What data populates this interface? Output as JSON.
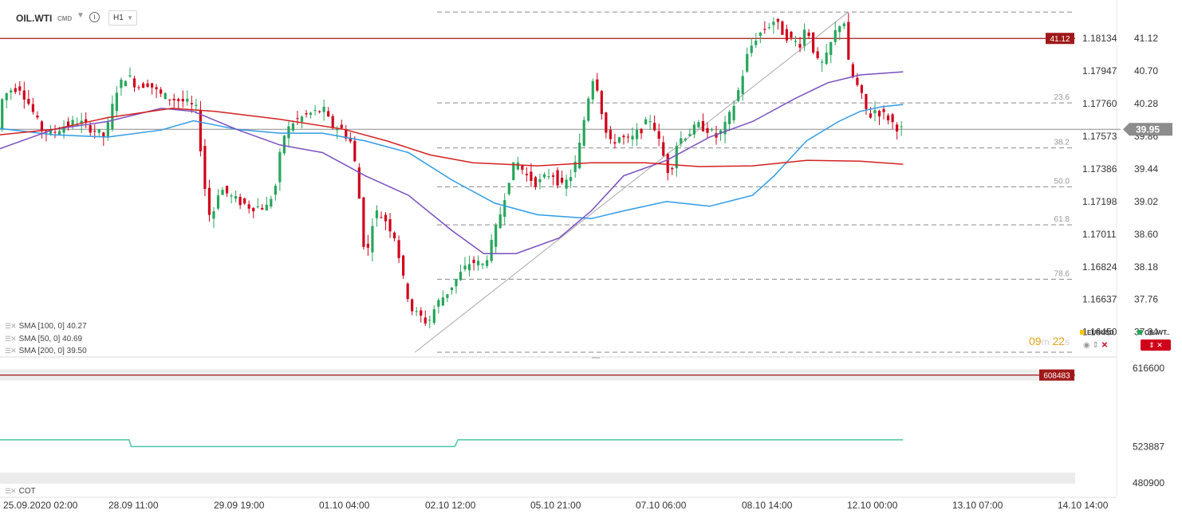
{
  "header": {
    "symbol": "OIL.WTI",
    "market": "CMD",
    "timeframe": "H1"
  },
  "indicators": [
    {
      "label": "SMA [100,  0] 40.27"
    },
    {
      "label": "SMA [50,  0] 40.69"
    },
    {
      "label": "SMA [200,  0] 39.50"
    }
  ],
  "cot_label": "COT",
  "timer": {
    "minutes": "09",
    "m": "m",
    "seconds": "22",
    "s": "s"
  },
  "pairs": [
    {
      "label": "EURUSD",
      "color": "#f5c518"
    },
    {
      "label": "OIL.WT..",
      "color": "#26a65b"
    }
  ],
  "colors": {
    "bull": "#26a65b",
    "bear": "#d0021b",
    "sma100": "#2f9be6",
    "sma50": "#7a4fbf",
    "sma200": "#d42020",
    "cot": "#4ec3a8",
    "hline": "#a01818",
    "current": "#8c8c8c"
  },
  "chart_data": {
    "type": "candlestick",
    "symbol": "OIL.WTI",
    "timeframe": "H1",
    "ylim": [
      37.08,
      41.43
    ],
    "right_axis": [
      41.12,
      40.7,
      40.28,
      39.86,
      39.44,
      39.02,
      38.6,
      38.18,
      37.76,
      37.34
    ],
    "left_axis": [
      "1.18134",
      "1.17947",
      "1.17760",
      "1.17573",
      "1.17386",
      "1.17198",
      "1.17011",
      "1.16824",
      "1.16637",
      "1.16450"
    ],
    "x_ticks": [
      "25.09.2020  02:00",
      "28.09  11:00",
      "29.09  19:00",
      "01.10  04:00",
      "02.10  12:00",
      "05.10  21:00",
      "07.10  06:00",
      "08.10  14:00",
      "12.10  00:00",
      "13.10  07:00",
      "14.10  14:00"
    ],
    "current_price": 39.95,
    "current_price_label": "39.95",
    "horizontal_line": {
      "value": 41.12,
      "label": "41.12"
    },
    "fibonacci": [
      {
        "label": "23.6",
        "value": 40.29
      },
      {
        "label": "38.2",
        "value": 39.71
      },
      {
        "label": "50.0",
        "value": 39.21
      },
      {
        "label": "61.8",
        "value": 38.72
      },
      {
        "label": "78.6",
        "value": 38.02
      }
    ],
    "fib_top": 41.46,
    "fib_bottom": 37.08,
    "trendline": [
      {
        "x": 0.386,
        "y": 37.08
      },
      {
        "x": 0.789,
        "y": 41.46
      }
    ],
    "series": [
      {
        "name": "SMA [100,  0]",
        "values": [
          [
            0.0,
            39.96
          ],
          [
            0.05,
            39.88
          ],
          [
            0.1,
            39.85
          ],
          [
            0.15,
            39.94
          ],
          [
            0.18,
            40.06
          ],
          [
            0.22,
            39.95
          ],
          [
            0.26,
            39.9
          ],
          [
            0.3,
            39.9
          ],
          [
            0.34,
            39.8
          ],
          [
            0.38,
            39.65
          ],
          [
            0.42,
            39.3
          ],
          [
            0.46,
            39.0
          ],
          [
            0.5,
            38.85
          ],
          [
            0.55,
            38.8
          ],
          [
            0.58,
            38.9
          ],
          [
            0.62,
            39.02
          ],
          [
            0.66,
            38.96
          ],
          [
            0.7,
            39.1
          ],
          [
            0.72,
            39.35
          ],
          [
            0.75,
            39.8
          ],
          [
            0.78,
            40.05
          ],
          [
            0.8,
            40.18
          ],
          [
            0.82,
            40.24
          ],
          [
            0.84,
            40.27
          ]
        ]
      },
      {
        "name": "SMA [50,  0]",
        "values": [
          [
            0.0,
            39.7
          ],
          [
            0.05,
            39.95
          ],
          [
            0.1,
            40.05
          ],
          [
            0.15,
            40.22
          ],
          [
            0.18,
            40.18
          ],
          [
            0.22,
            39.95
          ],
          [
            0.26,
            39.75
          ],
          [
            0.3,
            39.65
          ],
          [
            0.34,
            39.35
          ],
          [
            0.38,
            39.1
          ],
          [
            0.42,
            38.65
          ],
          [
            0.45,
            38.35
          ],
          [
            0.48,
            38.35
          ],
          [
            0.52,
            38.55
          ],
          [
            0.55,
            38.9
          ],
          [
            0.58,
            39.35
          ],
          [
            0.62,
            39.55
          ],
          [
            0.66,
            39.85
          ],
          [
            0.7,
            40.05
          ],
          [
            0.74,
            40.35
          ],
          [
            0.77,
            40.55
          ],
          [
            0.8,
            40.65
          ],
          [
            0.84,
            40.69
          ]
        ]
      },
      {
        "name": "SMA [200,  0]",
        "values": [
          [
            0.0,
            39.88
          ],
          [
            0.05,
            39.95
          ],
          [
            0.1,
            40.1
          ],
          [
            0.16,
            40.22
          ],
          [
            0.2,
            40.18
          ],
          [
            0.26,
            40.08
          ],
          [
            0.32,
            39.95
          ],
          [
            0.36,
            39.8
          ],
          [
            0.4,
            39.62
          ],
          [
            0.44,
            39.52
          ],
          [
            0.5,
            39.48
          ],
          [
            0.55,
            39.52
          ],
          [
            0.6,
            39.52
          ],
          [
            0.65,
            39.47
          ],
          [
            0.7,
            39.48
          ],
          [
            0.75,
            39.55
          ],
          [
            0.8,
            39.54
          ],
          [
            0.84,
            39.5
          ]
        ]
      }
    ],
    "anchors": [
      [
        0.0,
        40.25
      ],
      [
        0.01,
        40.45
      ],
      [
        0.02,
        40.5
      ],
      [
        0.03,
        40.25
      ],
      [
        0.04,
        39.95
      ],
      [
        0.05,
        39.9
      ],
      [
        0.062,
        40.0
      ],
      [
        0.075,
        40.05
      ],
      [
        0.088,
        39.95
      ],
      [
        0.1,
        39.85
      ],
      [
        0.11,
        40.45
      ],
      [
        0.12,
        40.65
      ],
      [
        0.13,
        40.5
      ],
      [
        0.14,
        40.55
      ],
      [
        0.15,
        40.4
      ],
      [
        0.16,
        40.35
      ],
      [
        0.175,
        40.3
      ],
      [
        0.185,
        40.2
      ],
      [
        0.192,
        39.25
      ],
      [
        0.198,
        38.75
      ],
      [
        0.206,
        39.2
      ],
      [
        0.22,
        39.05
      ],
      [
        0.235,
        38.95
      ],
      [
        0.25,
        38.95
      ],
      [
        0.258,
        39.2
      ],
      [
        0.265,
        39.85
      ],
      [
        0.275,
        40.05
      ],
      [
        0.29,
        40.15
      ],
      [
        0.303,
        40.2
      ],
      [
        0.31,
        40.0
      ],
      [
        0.32,
        39.95
      ],
      [
        0.33,
        39.75
      ],
      [
        0.338,
        38.85
      ],
      [
        0.342,
        38.2
      ],
      [
        0.35,
        38.9
      ],
      [
        0.36,
        38.8
      ],
      [
        0.37,
        38.55
      ],
      [
        0.378,
        37.95
      ],
      [
        0.386,
        37.6
      ],
      [
        0.392,
        37.55
      ],
      [
        0.4,
        37.45
      ],
      [
        0.408,
        37.7
      ],
      [
        0.418,
        37.85
      ],
      [
        0.428,
        38.05
      ],
      [
        0.44,
        38.25
      ],
      [
        0.452,
        38.2
      ],
      [
        0.46,
        38.5
      ],
      [
        0.468,
        38.9
      ],
      [
        0.475,
        39.3
      ],
      [
        0.482,
        39.55
      ],
      [
        0.492,
        39.35
      ],
      [
        0.502,
        39.25
      ],
      [
        0.515,
        39.4
      ],
      [
        0.525,
        39.2
      ],
      [
        0.535,
        39.4
      ],
      [
        0.54,
        39.65
      ],
      [
        0.548,
        40.3
      ],
      [
        0.555,
        40.7
      ],
      [
        0.56,
        40.3
      ],
      [
        0.568,
        39.75
      ],
      [
        0.578,
        39.85
      ],
      [
        0.588,
        39.8
      ],
      [
        0.598,
        39.95
      ],
      [
        0.608,
        40.1
      ],
      [
        0.618,
        39.65
      ],
      [
        0.625,
        39.35
      ],
      [
        0.632,
        39.8
      ],
      [
        0.642,
        39.9
      ],
      [
        0.652,
        40.0
      ],
      [
        0.66,
        39.95
      ],
      [
        0.668,
        39.85
      ],
      [
        0.675,
        39.95
      ],
      [
        0.683,
        40.2
      ],
      [
        0.69,
        40.5
      ],
      [
        0.698,
        40.95
      ],
      [
        0.706,
        41.15
      ],
      [
        0.714,
        41.25
      ],
      [
        0.722,
        41.35
      ],
      [
        0.73,
        41.2
      ],
      [
        0.738,
        41.1
      ],
      [
        0.746,
        41.05
      ],
      [
        0.752,
        41.3
      ],
      [
        0.758,
        41.0
      ],
      [
        0.764,
        40.75
      ],
      [
        0.77,
        40.85
      ],
      [
        0.776,
        41.1
      ],
      [
        0.782,
        41.3
      ],
      [
        0.787,
        41.35
      ],
      [
        0.792,
        40.7
      ],
      [
        0.798,
        40.55
      ],
      [
        0.804,
        40.35
      ],
      [
        0.81,
        40.1
      ],
      [
        0.816,
        40.2
      ],
      [
        0.822,
        40.15
      ],
      [
        0.828,
        40.1
      ],
      [
        0.834,
        40.0
      ],
      [
        0.84,
        39.95
      ]
    ],
    "cot": {
      "label": "COT",
      "axis": [
        "616600",
        "523887",
        "480900"
      ],
      "ylim": [
        480900,
        616600
      ],
      "marker": {
        "value": 608483,
        "label": "608483"
      },
      "values": [
        [
          0.0,
          531900
        ],
        [
          0.12,
          531900
        ],
        [
          0.122,
          523887
        ],
        [
          0.423,
          523887
        ],
        [
          0.426,
          531900
        ],
        [
          0.84,
          531900
        ]
      ]
    }
  }
}
